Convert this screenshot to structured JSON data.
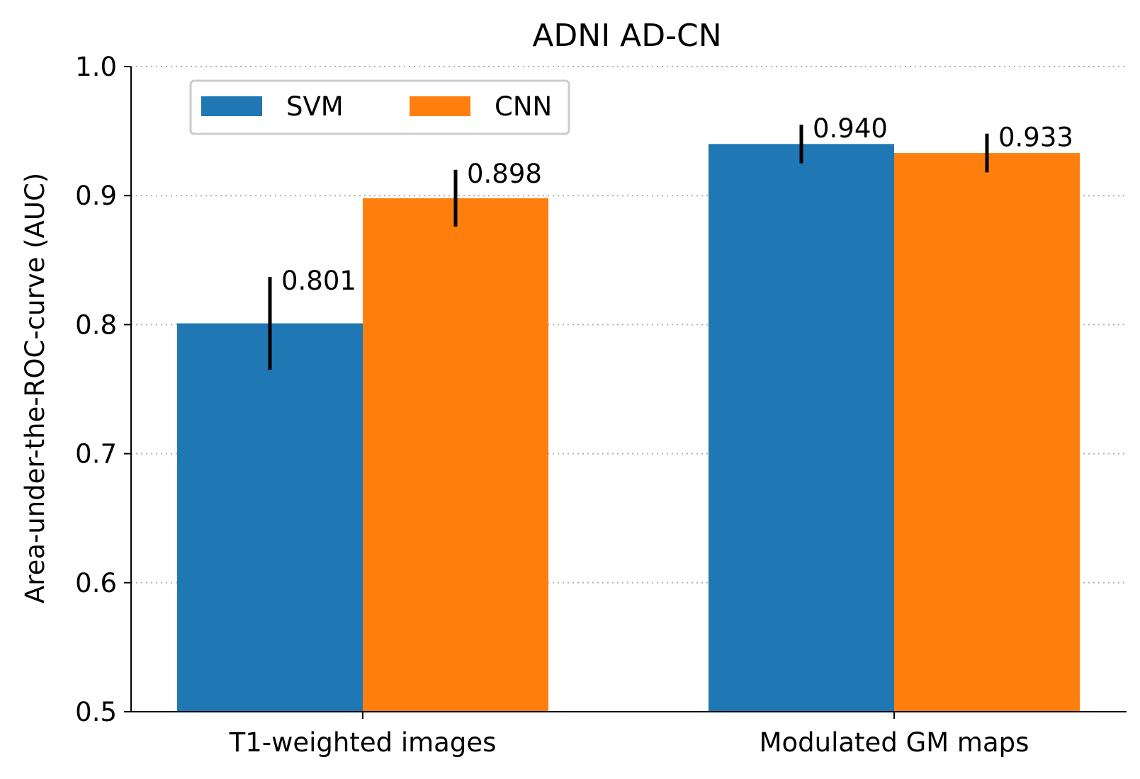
{
  "chart_data": {
    "type": "bar",
    "title": "ADNI AD-CN",
    "xlabel": "",
    "ylabel": "Area-under-the-ROC-curve (AUC)",
    "ylim": [
      0.5,
      1.0
    ],
    "yticks": [
      "0.5",
      "0.6",
      "0.7",
      "0.8",
      "0.9",
      "1.0"
    ],
    "grid": "horizontal dotted",
    "legend_position": "top-left",
    "categories": [
      "T1-weighted images",
      "Modulated GM maps"
    ],
    "series": [
      {
        "name": "SVM",
        "color": "#1f77b4",
        "values": [
          0.801,
          0.94
        ],
        "labels": [
          "0.801",
          "0.940"
        ],
        "error": [
          0.036,
          0.015
        ]
      },
      {
        "name": "CNN",
        "color": "#ff7f0e",
        "values": [
          0.898,
          0.933
        ],
        "labels": [
          "0.898",
          "0.933"
        ],
        "error": [
          0.022,
          0.015
        ]
      }
    ]
  }
}
